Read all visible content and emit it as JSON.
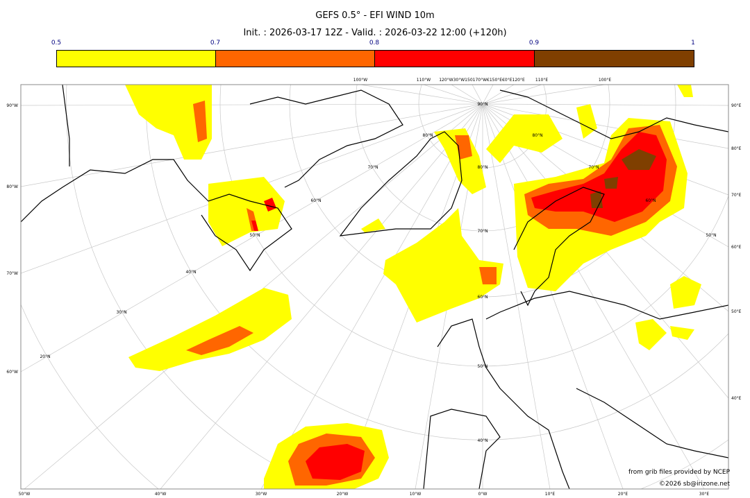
{
  "title": "GEFS 0.5° - EFI WIND 10m",
  "subtitle": "Init. : 2026-03-17 12Z - Valid. : 2026-03-22 12:00 (+120h)",
  "colorbar": {
    "ticks": [
      "0.5",
      "0.7",
      "0.8",
      "0.9",
      "1"
    ],
    "bins": [
      {
        "from": 0.5,
        "to": 0.7,
        "color": "#ffff00"
      },
      {
        "from": 0.7,
        "to": 0.8,
        "color": "#ff6600"
      },
      {
        "from": 0.8,
        "to": 0.9,
        "color": "#ff0000"
      },
      {
        "from": 0.9,
        "to": 1.0,
        "color": "#7f3f00"
      }
    ]
  },
  "axes": {
    "bottom": [
      "50°W",
      "40°W",
      "30°W",
      "20°W",
      "10°W",
      "0°W",
      "10°E",
      "20°E",
      "30°E"
    ],
    "left": [
      "90°W",
      "80°W",
      "70°W",
      "60°W"
    ],
    "right": [
      "90°E",
      "80°E",
      "70°E",
      "60°E",
      "50°E",
      "40°E"
    ],
    "top": [
      "100°W",
      "110°W",
      "120°W30°W150170°W€150°E€0°E120°E",
      "110°E",
      "100°E"
    ],
    "lat_labels": [
      "90°N",
      "80°N",
      "70°N",
      "60°N",
      "50°N",
      "40°N",
      "30°N",
      "20°N",
      "80°N",
      "70°N",
      "60°N",
      "50°N",
      "40°N",
      "80°N",
      "70°N",
      "60°N",
      "50°N"
    ]
  },
  "credits": {
    "source": "from grib files provided by NCEP",
    "copyright": "©2026 sb@irizone.net"
  }
}
